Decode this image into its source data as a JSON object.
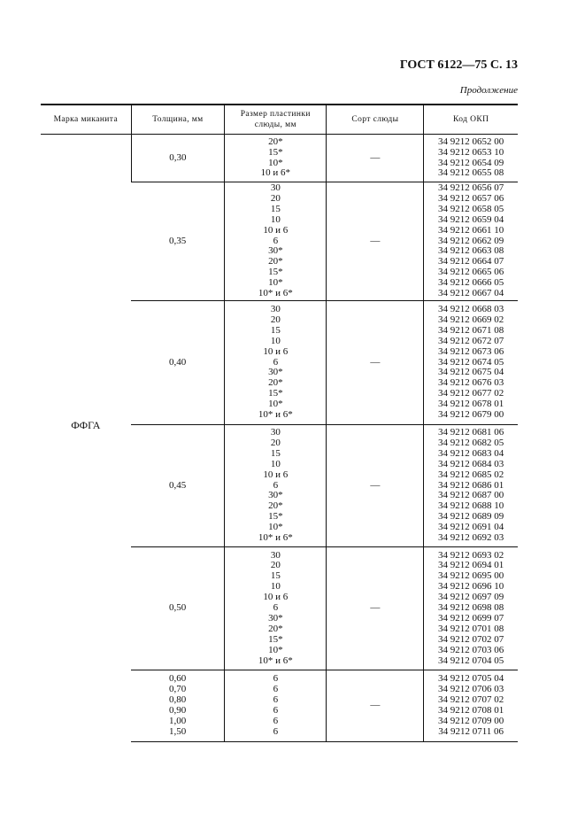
{
  "header": {
    "title": "ГОСТ 6122—75 С. 13",
    "continuation": "Продолжение"
  },
  "table": {
    "columns": [
      "Марка миканита",
      "Толщина, мм",
      "Размер пластинки слюды, мм",
      "Сорт слюды",
      "Код ОКП"
    ],
    "mark": "ФФГА",
    "groups": [
      {
        "thickness": [
          "0,30"
        ],
        "sizes": [
          "20*",
          "15*",
          "10*",
          "10 и 6*"
        ],
        "grade": "—",
        "codes": [
          "34 9212 0652 00",
          "34 9212 0653 10",
          "34 9212 0654 09",
          "34 9212 0655 08"
        ]
      },
      {
        "thickness": [
          "0,35"
        ],
        "sizes": [
          "30",
          "20",
          "15",
          "10",
          "10 и 6",
          "6",
          "30*",
          "20*",
          "15*",
          "10*",
          "10* и 6*"
        ],
        "grade": "—",
        "codes": [
          "34 9212 0656 07",
          "34 9212 0657 06",
          "34 9212 0658 05",
          "34 9212 0659 04",
          "34 9212 0661 10",
          "34 9212 0662 09",
          "34 9212 0663 08",
          "34 9212 0664 07",
          "34 9212 0665 06",
          "34 9212 0666 05",
          "34 9212 0667 04"
        ]
      },
      {
        "thickness": [
          "0,40"
        ],
        "sizes": [
          "30",
          "20",
          "15",
          "10",
          "10 и 6",
          "6",
          "30*",
          "20*",
          "15*",
          "10*",
          "10* и 6*"
        ],
        "grade": "—",
        "codes": [
          "34 9212 0668 03",
          "34 9212 0669 02",
          "34 9212 0671 08",
          "34 9212 0672 07",
          "34 9212 0673 06",
          "34 9212 0674 05",
          "34 9212 0675 04",
          "34 9212 0676 03",
          "34 9212 0677 02",
          "34 9212 0678 01",
          "34 9212 0679 00"
        ]
      },
      {
        "thickness": [
          "0,45"
        ],
        "sizes": [
          "30",
          "20",
          "15",
          "10",
          "10 и 6",
          "6",
          "30*",
          "20*",
          "15*",
          "10*",
          "10* и 6*"
        ],
        "grade": "—",
        "codes": [
          "34 9212 0681 06",
          "34 9212 0682 05",
          "34 9212 0683 04",
          "34 9212 0684 03",
          "34 9212 0685 02",
          "34 9212 0686 01",
          "34 9212 0687 00",
          "34 9212 0688 10",
          "34 9212 0689 09",
          "34 9212 0691 04",
          "34 9212 0692 03"
        ]
      },
      {
        "thickness": [
          "0,50"
        ],
        "sizes": [
          "30",
          "20",
          "15",
          "10",
          "10 и 6",
          "6",
          "30*",
          "20*",
          "15*",
          "10*",
          "10* и 6*"
        ],
        "grade": "—",
        "codes": [
          "34 9212 0693 02",
          "34 9212 0694 01",
          "34 9212 0695 00",
          "34 9212 0696 10",
          "34 9212 0697 09",
          "34 9212 0698 08",
          "34 9212 0699 07",
          "34 9212 0701 08",
          "34 9212 0702 07",
          "34 9212 0703 06",
          "34 9212 0704 05"
        ]
      },
      {
        "thickness": [
          "0,60",
          "0,70",
          "0,80",
          "0,90",
          "1,00",
          "1,50"
        ],
        "sizes": [
          "6",
          "6",
          "6",
          "6",
          "6",
          "6"
        ],
        "grade": "—",
        "codes": [
          "34 9212 0705 04",
          "34 9212 0706 03",
          "34 9212 0707 02",
          "34 9212 0708 01",
          "34 9212 0709 00",
          "34 9212 0711 06"
        ]
      }
    ]
  }
}
